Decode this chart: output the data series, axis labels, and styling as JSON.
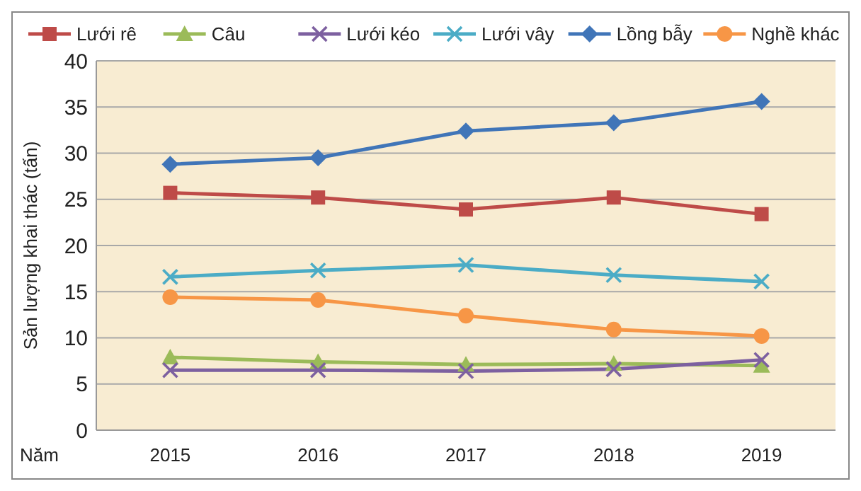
{
  "chart_data": {
    "type": "line",
    "xlabel": "Năm",
    "ylabel": "Sản lượng khai thác (tấn)",
    "categories": [
      "2015",
      "2016",
      "2017",
      "2018",
      "2019"
    ],
    "ylim": [
      0,
      40
    ],
    "yticks": [
      0,
      5,
      10,
      15,
      20,
      25,
      30,
      35,
      40
    ],
    "grid": "y",
    "legend": "top",
    "series": [
      {
        "name": "Lưới rê",
        "color": "#be4b48",
        "marker": "square",
        "values": [
          25.7,
          25.2,
          23.9,
          25.2,
          23.4
        ]
      },
      {
        "name": "Câu",
        "color": "#9bbb59",
        "marker": "triangle",
        "values": [
          7.9,
          7.4,
          7.1,
          7.2,
          7.0
        ]
      },
      {
        "name": "Lưới kéo",
        "color": "#7d60a0",
        "marker": "cross",
        "values": [
          6.5,
          6.5,
          6.4,
          6.6,
          7.6
        ]
      },
      {
        "name": "Lưới vây",
        "color": "#4bacc6",
        "marker": "cross",
        "values": [
          16.6,
          17.3,
          17.9,
          16.8,
          16.1
        ]
      },
      {
        "name": "Lồng bẫy",
        "color": "#4075b8",
        "marker": "diamond",
        "values": [
          28.8,
          29.5,
          32.4,
          33.3,
          35.6
        ]
      },
      {
        "name": "Nghề khác",
        "color": "#f79646",
        "marker": "circle",
        "values": [
          14.4,
          14.1,
          12.4,
          10.9,
          10.2
        ]
      }
    ]
  }
}
